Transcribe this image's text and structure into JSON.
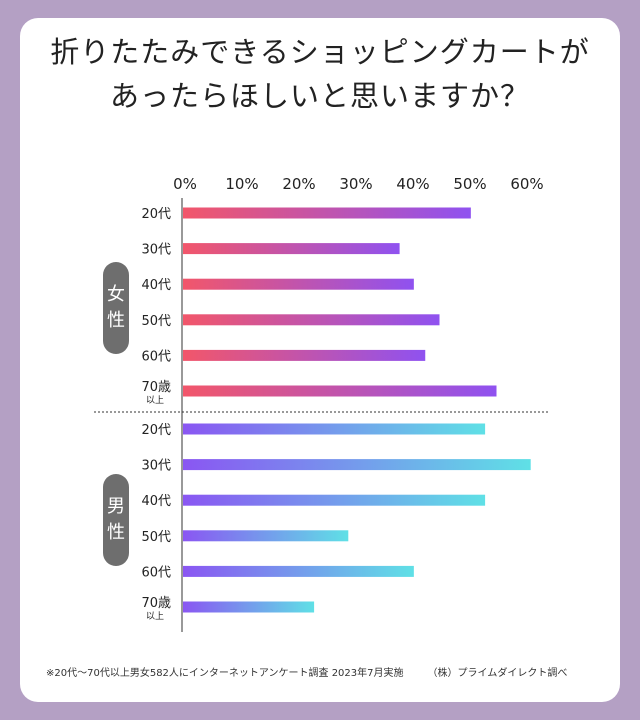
{
  "title_line1": "折りたたみできるショッピングカートが",
  "title_line2": "あったらほしいと思いますか？",
  "footnote": "※20代〜70代以上男女582人にインターネットアンケート調査 2023年7月実施",
  "source": "（株）プライムダイレクト調べ",
  "groups": [
    {
      "label_line1": "女",
      "label_line2": "性"
    },
    {
      "label_line1": "男",
      "label_line2": "性"
    }
  ],
  "chart_data": {
    "type": "bar",
    "orientation": "horizontal",
    "x_ticks": [
      "0%",
      "10%",
      "20%",
      "30%",
      "40%",
      "50%",
      "60%"
    ],
    "xlim": [
      0,
      60
    ],
    "categories": [
      "20代",
      "30代",
      "40代",
      "50代",
      "60代",
      "70歳"
    ],
    "category_sub": [
      "",
      "",
      "",
      "",
      "",
      "以上"
    ],
    "series": [
      {
        "values": [
          50.5,
          38.0,
          40.5,
          45.0,
          42.5,
          55.0
        ],
        "color_start": "#f2566a",
        "color_end": "#8f52f0"
      },
      {
        "values": [
          53.0,
          61.0,
          53.0,
          29.0,
          40.5,
          23.0
        ],
        "color_start": "#8a56f2",
        "color_end": "#5fe0e6"
      }
    ]
  }
}
